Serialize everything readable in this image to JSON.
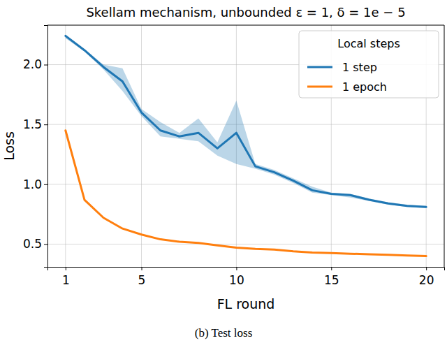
{
  "chart_data": {
    "type": "line",
    "title": "Skellam mechanism, unbounded ε = 1, δ = 1e − 5",
    "caption": "(b) Test loss",
    "x_label": "FL round",
    "y_label": "Loss",
    "x": [
      1,
      2,
      3,
      4,
      5,
      6,
      7,
      8,
      9,
      10,
      11,
      12,
      13,
      14,
      15,
      16,
      17,
      18,
      19,
      20
    ],
    "xlim": [
      0.05,
      20.95
    ],
    "xticks": [
      1,
      5,
      10,
      15,
      20
    ],
    "ylim": [
      0.31,
      2.33
    ],
    "yticks": [
      {
        "value": 0.5,
        "label": "0.5"
      },
      {
        "value": 1.0,
        "label": "1.0"
      },
      {
        "value": 1.5,
        "label": "1.5"
      },
      {
        "value": 2.0,
        "label": "2.0"
      }
    ],
    "grid": true,
    "legend": "upper right",
    "legend_title": "Local steps",
    "series": [
      {
        "name": "1 step",
        "color": "#1f77b4",
        "values": [
          2.24,
          2.12,
          1.98,
          1.86,
          1.6,
          1.45,
          1.4,
          1.43,
          1.3,
          1.43,
          1.15,
          1.1,
          1.03,
          0.95,
          0.92,
          0.91,
          0.87,
          0.84,
          0.82,
          0.81
        ],
        "lower": [
          2.22,
          2.11,
          1.96,
          1.78,
          1.57,
          1.4,
          1.38,
          1.36,
          1.24,
          1.17,
          1.13,
          1.08,
          1.01,
          0.93,
          0.91,
          0.89,
          0.86,
          0.83,
          0.81,
          0.8
        ],
        "upper": [
          2.25,
          2.13,
          2.0,
          1.97,
          1.63,
          1.52,
          1.43,
          1.55,
          1.35,
          1.7,
          1.17,
          1.12,
          1.05,
          0.98,
          0.93,
          0.92,
          0.88,
          0.85,
          0.83,
          0.82
        ]
      },
      {
        "name": "1 epoch",
        "color": "#ff7f0e",
        "values": [
          1.45,
          0.87,
          0.72,
          0.63,
          0.58,
          0.54,
          0.52,
          0.51,
          0.49,
          0.47,
          0.46,
          0.455,
          0.44,
          0.43,
          0.425,
          0.42,
          0.415,
          0.41,
          0.405,
          0.4
        ]
      }
    ]
  }
}
